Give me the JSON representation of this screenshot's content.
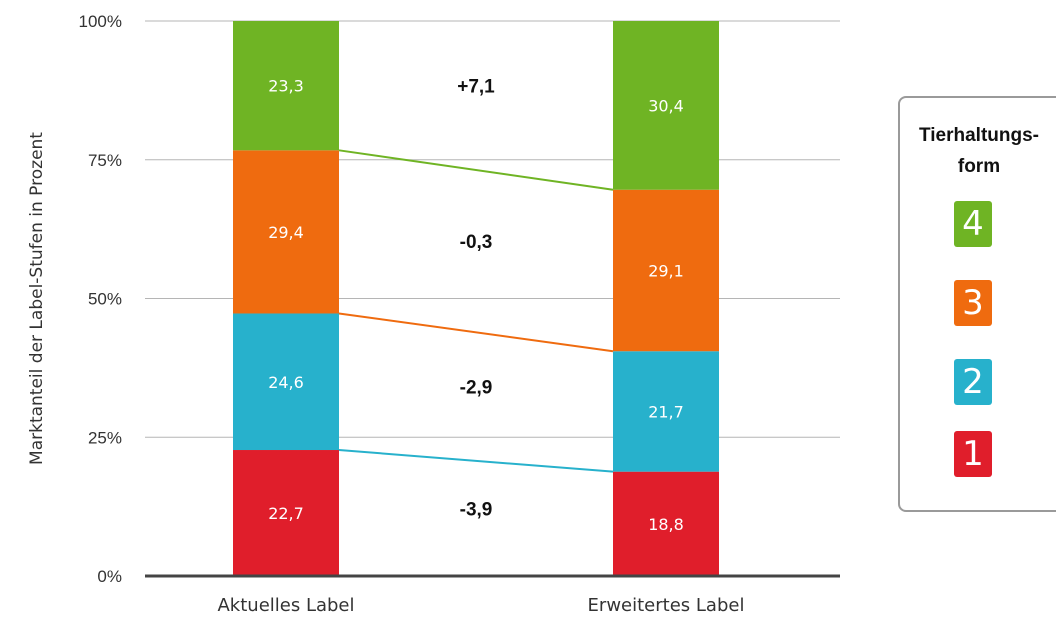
{
  "chart_data": {
    "type": "bar",
    "stacked": true,
    "categories": [
      "Aktuelles Label",
      "Erweitertes Label"
    ],
    "ylabel": "Marktanteil der Label-Stufen in Prozent",
    "xlabel": "",
    "ylim": [
      0,
      100
    ],
    "yticks": [
      "0%",
      "25%",
      "50%",
      "75%",
      "100%"
    ],
    "grid": true,
    "series": [
      {
        "name": "1",
        "color": "#e01e2b",
        "values": [
          22.7,
          18.8
        ],
        "labels": [
          "22,7",
          "18,8"
        ]
      },
      {
        "name": "2",
        "color": "#27b1cc",
        "values": [
          24.6,
          21.7
        ],
        "labels": [
          "24,6",
          "21,7"
        ]
      },
      {
        "name": "3",
        "color": "#ef6b0f",
        "values": [
          29.4,
          29.1
        ],
        "labels": [
          "29,4",
          "29,1"
        ]
      },
      {
        "name": "4",
        "color": "#6fb424",
        "values": [
          23.3,
          30.4
        ],
        "labels": [
          "23,3",
          "30,4"
        ]
      }
    ],
    "differences": [
      "-3,9",
      "-2,9",
      "-0,3",
      "+7,1"
    ],
    "legend": {
      "title_line1": "Tierhaltungs-",
      "title_line2": "form",
      "position": "right"
    }
  }
}
